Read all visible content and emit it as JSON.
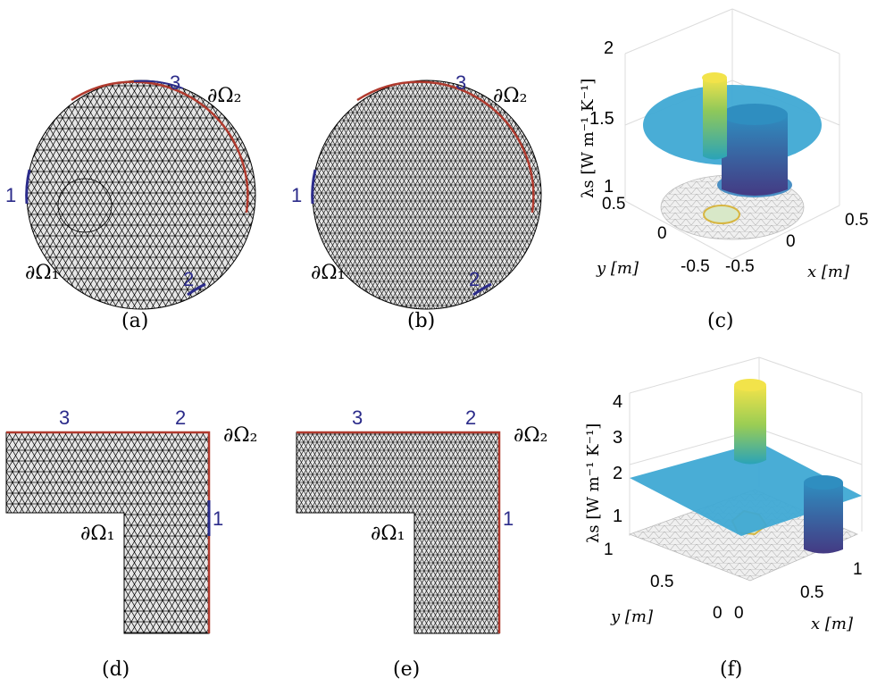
{
  "panels": {
    "a": {
      "caption": "(a)",
      "boundary_1": "∂Ω₁",
      "boundary_2": "∂Ω₂",
      "markers": [
        "1",
        "2",
        "3"
      ]
    },
    "b": {
      "caption": "(b)",
      "boundary_1": "∂Ω₁",
      "boundary_2": "∂Ω₂",
      "markers": [
        "1",
        "2",
        "3"
      ]
    },
    "c": {
      "caption": "(c)",
      "zlabel": "λs [W m⁻¹ K⁻¹]",
      "xlabel": "x [m]",
      "ylabel": "y [m]",
      "zticks": [
        "1",
        "1.5",
        "2"
      ],
      "xticks": [
        "-0.5",
        "0",
        "0.5"
      ],
      "yticks": [
        "-0.5",
        "0",
        "0.5"
      ]
    },
    "d": {
      "caption": "(d)",
      "boundary_1": "∂Ω₁",
      "boundary_2": "∂Ω₂",
      "markers": [
        "1",
        "2",
        "3"
      ]
    },
    "e": {
      "caption": "(e)",
      "boundary_1": "∂Ω₁",
      "boundary_2": "∂Ω₂",
      "markers": [
        "1",
        "2",
        "3"
      ]
    },
    "f": {
      "caption": "(f)",
      "zlabel": "λs [W m⁻¹ K⁻¹]",
      "xlabel": "x [m]",
      "ylabel": "y [m]",
      "zticks": [
        "1",
        "2",
        "3",
        "4"
      ],
      "xticks": [
        "0",
        "0.5",
        "1"
      ],
      "yticks": [
        "0",
        "0.5",
        "1"
      ]
    }
  },
  "colors": {
    "mesh_fill": "#e6e6e6",
    "mesh_line": "#000000",
    "dirichlet": "#b03a2e",
    "neumann": "#2b2b8a",
    "plateau": "#3fa9d4",
    "peak_top": "#f2e34a",
    "well_bottom": "#443a83"
  }
}
